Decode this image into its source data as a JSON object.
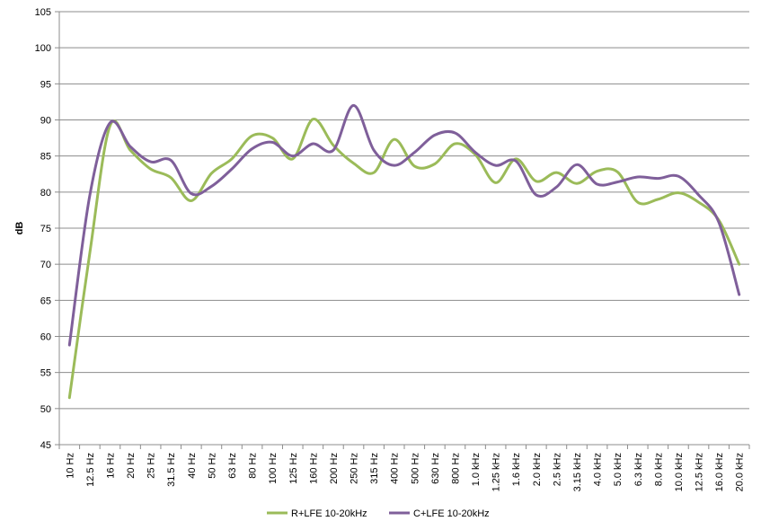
{
  "chart_data": {
    "type": "line",
    "title": "",
    "xlabel": "",
    "ylabel": "dB",
    "ylim": [
      45,
      105
    ],
    "yticks": [
      45,
      50,
      55,
      60,
      65,
      70,
      75,
      80,
      85,
      90,
      95,
      100,
      105
    ],
    "grid": "horizontal",
    "legend_position": "bottom",
    "categories": [
      "10 Hz",
      "12.5 Hz",
      "16 Hz",
      "20 Hz",
      "25 Hz",
      "31.5 Hz",
      "40 Hz",
      "50 Hz",
      "63 Hz",
      "80 Hz",
      "100 Hz",
      "125 Hz",
      "160 Hz",
      "200 Hz",
      "250 Hz",
      "315 Hz",
      "400 Hz",
      "500 Hz",
      "630 Hz",
      "800 Hz",
      "1.0 kHz",
      "1.25 kHz",
      "1.6 kHz",
      "2.0 kHz",
      "2.5 kHz",
      "3.15 kHz",
      "4.0 kHz",
      "5.0 kHz",
      "6.3 kHz",
      "8.0 kHz",
      "10.0 kHz",
      "12.5 kHz",
      "16.0 kHz",
      "20.0 kHz"
    ],
    "series": [
      {
        "name": "R+LFE 10-20kHz",
        "color": "#9bbb59",
        "values": [
          51.5,
          71.5,
          89.2,
          85.8,
          83.2,
          82.0,
          78.8,
          82.6,
          84.6,
          87.8,
          87.5,
          84.6,
          90.1,
          86.5,
          84.0,
          82.7,
          87.3,
          83.6,
          83.9,
          86.7,
          85.2,
          81.3,
          84.6,
          81.5,
          82.7,
          81.2,
          82.9,
          82.8,
          78.6,
          79.0,
          79.9,
          78.6,
          76.1,
          70.0
        ]
      },
      {
        "name": "C+LFE 10-20kHz",
        "color": "#7f5f9a",
        "values": [
          58.8,
          79.5,
          89.6,
          86.3,
          84.2,
          84.4,
          79.8,
          80.8,
          83.2,
          86.0,
          86.9,
          85.0,
          86.7,
          85.8,
          92.0,
          85.8,
          83.7,
          85.5,
          87.9,
          88.2,
          85.5,
          83.7,
          84.3,
          79.6,
          80.7,
          83.8,
          81.1,
          81.4,
          82.1,
          81.9,
          82.2,
          79.6,
          75.8,
          65.8
        ]
      }
    ]
  }
}
